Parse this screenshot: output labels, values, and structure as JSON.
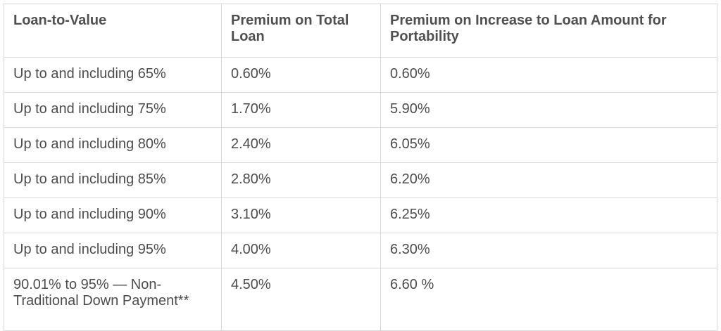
{
  "table": {
    "headers": [
      "Loan-to-Value",
      "Premium on Total Loan",
      "Premium on Increase to Loan Amount for Portability"
    ],
    "rows": [
      [
        "Up to and including 65%",
        "0.60%",
        "0.60%"
      ],
      [
        "Up to and including 75%",
        "1.70%",
        "5.90%"
      ],
      [
        "Up to and including 80%",
        "2.40%",
        "6.05%"
      ],
      [
        "Up to and including 85%",
        "2.80%",
        "6.20%"
      ],
      [
        "Up to and including 90%",
        "3.10%",
        "6.25%"
      ],
      [
        "Up to and including 95%",
        "4.00%",
        "6.30%"
      ],
      [
        "90.01% to 95% — Non-Traditional Down Payment**",
        "4.50%",
        "6.60 %"
      ]
    ]
  }
}
